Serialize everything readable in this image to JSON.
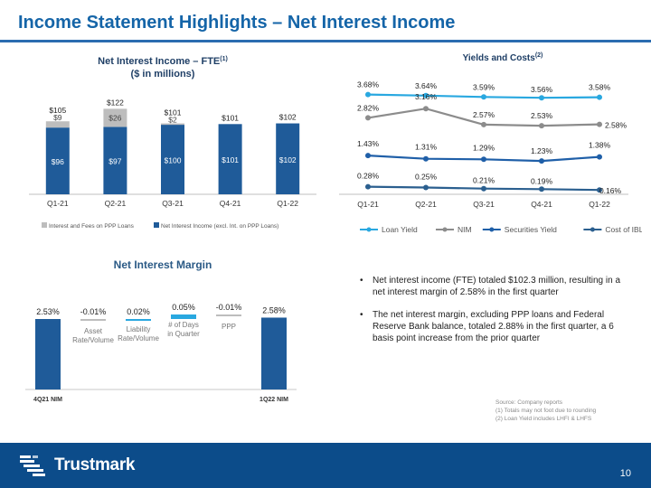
{
  "page": {
    "title": "Income Statement Highlights – Net Interest Income",
    "page_number": "10"
  },
  "colors": {
    "title_blue": "#1565a8",
    "bar_blue": "#1f5b99",
    "ppp_gray": "#bdbdbd",
    "loan_yield": "#29a8e0",
    "nim": "#8c8c8c",
    "securities_yield": "#1f5fa8",
    "cost_ibl": "#2b5f8f",
    "footer_blue": "#0c4c8a"
  },
  "chart_data": [
    {
      "id": "nii",
      "type": "bar",
      "stacked": true,
      "title": "Net Interest Income – FTE",
      "title_sup": "(1)",
      "subtitle": "($ in millions)",
      "categories": [
        "Q1-21",
        "Q2-21",
        "Q3-21",
        "Q4-21",
        "Q1-22"
      ],
      "series": [
        {
          "name": "Net Interest Income (excl. Int. on PPP Loans)",
          "values": [
            96,
            97,
            100,
            101,
            102
          ],
          "labels": [
            "$96",
            "$97",
            "$100",
            "$101",
            "$102"
          ],
          "color": "#1f5b99"
        },
        {
          "name": "Interest and Fees on PPP Loans",
          "values": [
            9,
            26,
            2,
            0,
            0
          ],
          "labels": [
            "$9",
            "$26",
            "$2",
            "",
            ""
          ],
          "color": "#bdbdbd"
        }
      ],
      "totals": [
        "$105",
        "$122",
        "$101",
        "$101",
        "$102"
      ],
      "ylim": [
        0,
        130
      ],
      "legend": "bottom"
    },
    {
      "id": "yields",
      "type": "line",
      "title": "Yields and Costs",
      "title_sup": "(2)",
      "categories": [
        "Q1-21",
        "Q2-21",
        "Q3-21",
        "Q4-21",
        "Q1-22"
      ],
      "series": [
        {
          "name": "Loan Yield",
          "values": [
            3.68,
            3.64,
            3.59,
            3.56,
            3.58
          ],
          "labels": [
            "3.68%",
            "3.64%",
            "3.59%",
            "3.56%",
            "3.58%"
          ],
          "color": "#29a8e0"
        },
        {
          "name": "NIM",
          "values": [
            2.82,
            3.16,
            2.57,
            2.53,
            2.58
          ],
          "labels": [
            "2.82%",
            "3.16%",
            "2.57%",
            "2.53%",
            "2.58%"
          ],
          "color": "#8c8c8c"
        },
        {
          "name": "Securities Yield",
          "values": [
            1.43,
            1.31,
            1.29,
            1.23,
            1.38
          ],
          "labels": [
            "1.43%",
            "1.31%",
            "1.29%",
            "1.23%",
            "1.38%"
          ],
          "color": "#1f5fa8"
        },
        {
          "name": "Cost of IBL",
          "values": [
            0.28,
            0.25,
            0.21,
            0.19,
            0.16
          ],
          "labels": [
            "0.28%",
            "0.25%",
            "0.21%",
            "0.19%",
            "0.16%"
          ],
          "color": "#2b5f8f"
        }
      ],
      "ylim": [
        0,
        4
      ],
      "legend": "bottom"
    },
    {
      "id": "nim_bridge",
      "type": "bar",
      "subtype": "waterfall",
      "title": "Net Interest Margin",
      "categories": [
        "4Q21 NIM",
        "Asset Rate/Volume",
        "Liability Rate/Volume",
        "# of Days in Quarter",
        "PPP",
        "1Q22 NIM"
      ],
      "values": [
        2.53,
        -0.01,
        0.02,
        0.05,
        -0.01,
        2.58
      ],
      "labels": [
        "2.53%",
        "-0.01%",
        "0.02%",
        "0.05%",
        "-0.01%",
        "2.58%"
      ],
      "step_labels": [
        "Asset\nRate/Volume",
        "Liability\nRate/Volume",
        "# of Days\nin Quarter",
        "PPP"
      ],
      "axis_labels": [
        "4Q21 NIM",
        "",
        "",
        "",
        "",
        "1Q22 NIM"
      ],
      "ylim": [
        0,
        2.6
      ]
    }
  ],
  "bullets": [
    "Net interest income (FTE) totaled $102.3 million, resulting in a net interest margin of 2.58% in the first quarter",
    "The net interest margin, excluding PPP loans and Federal Reserve Bank balance, totaled 2.88% in the first quarter, a 6 basis point increase from the prior quarter"
  ],
  "notes": [
    "Source: Company reports",
    "(1) Totals may not foot due to rounding",
    "(2) Loan Yield includes LHFI & LHFS"
  ],
  "logo": {
    "text": "Trustmark",
    "icon": "trustmark-logo-icon"
  }
}
